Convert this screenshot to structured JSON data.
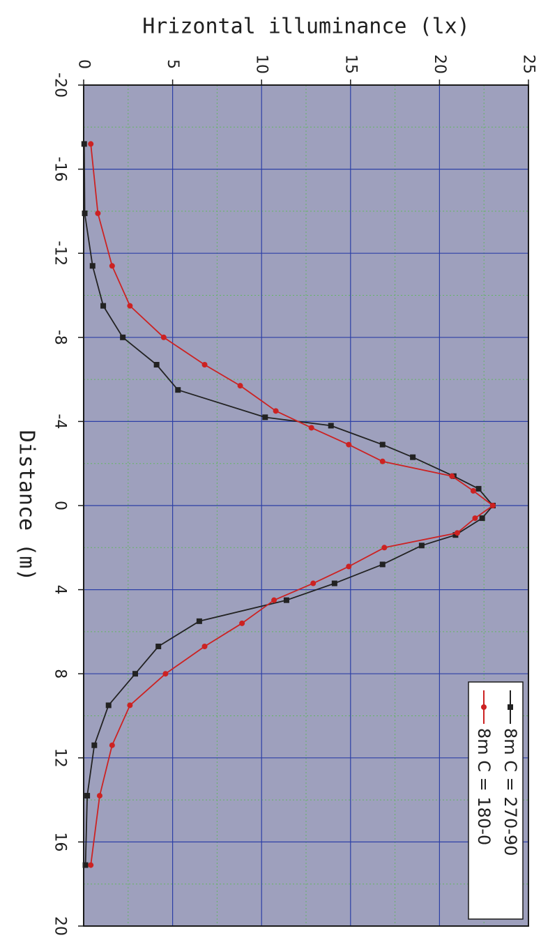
{
  "chart_data": {
    "type": "line",
    "title": "",
    "ylabel": "Hrizontal illuminance (lx)",
    "xlabel": "Distance (m)",
    "xlim": [
      -20,
      20
    ],
    "ylim": [
      0,
      25
    ],
    "x_ticks": [
      -20,
      -16,
      -12,
      -8,
      -4,
      0,
      4,
      8,
      12,
      16,
      20
    ],
    "y_ticks": [
      0,
      5,
      10,
      15,
      20,
      25
    ],
    "x_minor_step": 2,
    "y_minor_step": 2.5,
    "grid": true,
    "legend_position": "bottom-right",
    "orientation": "rotated 90 degrees clockwise",
    "series": [
      {
        "name": "8m  C = 270-90",
        "color": "#222222",
        "marker": "square",
        "points": [
          {
            "x": -17.2,
            "y": 0.03
          },
          {
            "x": -13.9,
            "y": 0.06
          },
          {
            "x": -11.4,
            "y": 0.5
          },
          {
            "x": -9.5,
            "y": 1.1
          },
          {
            "x": -8.0,
            "y": 2.2
          },
          {
            "x": -6.7,
            "y": 4.1
          },
          {
            "x": -5.5,
            "y": 5.3
          },
          {
            "x": -4.2,
            "y": 10.2
          },
          {
            "x": -3.8,
            "y": 13.9
          },
          {
            "x": -2.9,
            "y": 16.8
          },
          {
            "x": -2.3,
            "y": 18.5
          },
          {
            "x": -1.4,
            "y": 20.8
          },
          {
            "x": -0.8,
            "y": 22.2
          },
          {
            "x": 0.0,
            "y": 23.0
          },
          {
            "x": 0.6,
            "y": 22.4
          },
          {
            "x": 1.4,
            "y": 20.9
          },
          {
            "x": 1.9,
            "y": 19.0
          },
          {
            "x": 2.8,
            "y": 16.8
          },
          {
            "x": 3.7,
            "y": 14.1
          },
          {
            "x": 4.5,
            "y": 11.4
          },
          {
            "x": 5.5,
            "y": 6.5
          },
          {
            "x": 6.7,
            "y": 4.2
          },
          {
            "x": 8.0,
            "y": 2.9
          },
          {
            "x": 9.5,
            "y": 1.4
          },
          {
            "x": 11.4,
            "y": 0.6
          },
          {
            "x": 13.8,
            "y": 0.2
          },
          {
            "x": 17.1,
            "y": 0.1
          }
        ]
      },
      {
        "name": "8m  C = 180-0",
        "color": "#cc2222",
        "marker": "circle",
        "points": [
          {
            "x": -17.2,
            "y": 0.4
          },
          {
            "x": -13.9,
            "y": 0.8
          },
          {
            "x": -11.4,
            "y": 1.6
          },
          {
            "x": -9.5,
            "y": 2.6
          },
          {
            "x": -8.0,
            "y": 4.5
          },
          {
            "x": -6.7,
            "y": 6.8
          },
          {
            "x": -5.7,
            "y": 8.8
          },
          {
            "x": -4.5,
            "y": 10.8
          },
          {
            "x": -3.7,
            "y": 12.8
          },
          {
            "x": -2.9,
            "y": 14.9
          },
          {
            "x": -2.1,
            "y": 16.8
          },
          {
            "x": -1.4,
            "y": 20.7
          },
          {
            "x": -0.7,
            "y": 21.9
          },
          {
            "x": 0.0,
            "y": 23.0
          },
          {
            "x": 0.6,
            "y": 22.0
          },
          {
            "x": 1.3,
            "y": 21.0
          },
          {
            "x": 2.0,
            "y": 16.9
          },
          {
            "x": 2.9,
            "y": 14.9
          },
          {
            "x": 3.7,
            "y": 12.9
          },
          {
            "x": 4.5,
            "y": 10.7
          },
          {
            "x": 5.6,
            "y": 8.9
          },
          {
            "x": 6.7,
            "y": 6.8
          },
          {
            "x": 8.0,
            "y": 4.6
          },
          {
            "x": 9.5,
            "y": 2.6
          },
          {
            "x": 11.4,
            "y": 1.6
          },
          {
            "x": 13.8,
            "y": 0.9
          },
          {
            "x": 17.1,
            "y": 0.4
          }
        ]
      }
    ]
  }
}
